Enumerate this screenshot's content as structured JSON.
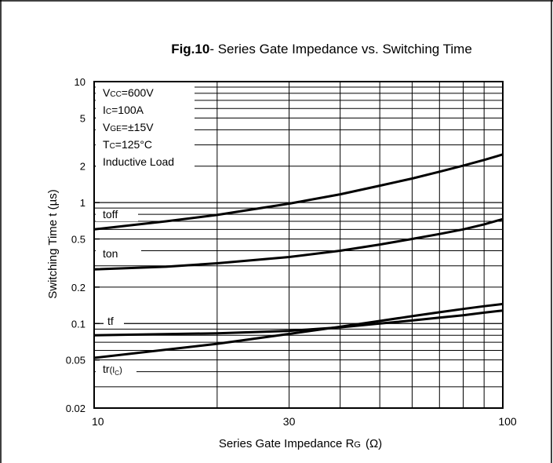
{
  "chart_data": {
    "type": "line",
    "title_bold": "Fig.10",
    "title_rest": "- Series Gate Impedance vs. Switching Time",
    "xlabel": {
      "main": "Series Gate Impedance R",
      "sub": "G",
      "unit": "(Ω)"
    },
    "ylabel": "Switching Time t  (µs)",
    "x_scale": "log",
    "y_scale": "log",
    "xlim": [
      10,
      100
    ],
    "ylim": [
      0.02,
      10
    ],
    "x_ticks": [
      {
        "value": 10,
        "label": "10"
      },
      {
        "value": 30,
        "label": "30"
      },
      {
        "value": 100,
        "label": "100"
      }
    ],
    "y_ticks": [
      {
        "value": 10,
        "label": "10"
      },
      {
        "value": 5,
        "label": "5"
      },
      {
        "value": 2,
        "label": "2"
      },
      {
        "value": 1,
        "label": "1"
      },
      {
        "value": 0.5,
        "label": "0.5"
      },
      {
        "value": 0.2,
        "label": "0.2"
      },
      {
        "value": 0.1,
        "label": "0.1"
      },
      {
        "value": 0.05,
        "label": "0.05"
      },
      {
        "value": 0.02,
        "label": "0.02"
      }
    ],
    "grid": true,
    "conditions": [
      {
        "pre": "V",
        "sub": "CC",
        "post": "=600V"
      },
      {
        "pre": "I",
        "sub": "C",
        "post": "=100A"
      },
      {
        "pre": "V",
        "sub": "GE",
        "post": "=±15V"
      },
      {
        "pre": "T",
        "sub": "C",
        "post": "=125°C"
      },
      {
        "pre": "Inductive Load",
        "sub": "",
        "post": ""
      }
    ],
    "series": [
      {
        "name": "toff",
        "x": [
          10,
          15,
          20,
          30,
          40,
          50,
          60,
          70,
          80,
          90,
          100
        ],
        "y": [
          0.6,
          0.7,
          0.79,
          0.98,
          1.17,
          1.38,
          1.58,
          1.8,
          2.02,
          2.25,
          2.5
        ]
      },
      {
        "name": "ton",
        "x": [
          10,
          15,
          20,
          30,
          40,
          50,
          60,
          70,
          80,
          90,
          100
        ],
        "y": [
          0.28,
          0.295,
          0.315,
          0.355,
          0.4,
          0.45,
          0.5,
          0.55,
          0.6,
          0.66,
          0.73
        ]
      },
      {
        "name": "tf",
        "x": [
          10,
          20,
          30,
          40,
          50,
          60,
          70,
          80,
          90,
          100
        ],
        "y": [
          0.08,
          0.083,
          0.087,
          0.093,
          0.1,
          0.106,
          0.112,
          0.117,
          0.123,
          0.128
        ]
      },
      {
        "name": "tr",
        "name_sub": "(I",
        "name_sub2": "C",
        "name_end": ")",
        "x": [
          10,
          20,
          30,
          40,
          50,
          60,
          70,
          80,
          90,
          100
        ],
        "y": [
          0.052,
          0.068,
          0.082,
          0.094,
          0.105,
          0.115,
          0.124,
          0.132,
          0.139,
          0.145
        ]
      }
    ],
    "series_labels": [
      {
        "name": "toff"
      },
      {
        "name": "ton"
      },
      {
        "name": "tf"
      },
      {
        "name": "tr"
      }
    ]
  }
}
